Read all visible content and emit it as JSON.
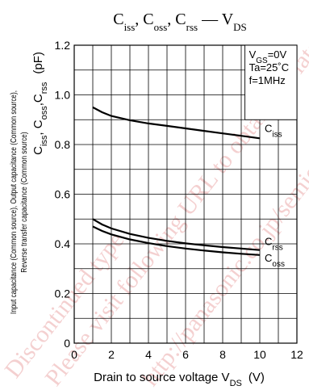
{
  "chart_data": {
    "type": "line",
    "title": {
      "parts": [
        {
          "text": "C",
          "sub": "iss"
        },
        {
          "text": ", C",
          "sub": "oss"
        },
        {
          "text": ", C",
          "sub": "rss"
        },
        {
          "text": " — V",
          "sub": "DS"
        }
      ]
    },
    "xlabel": {
      "main": "Drain to source voltage  V",
      "sub": "DS",
      "unit": "(V)"
    },
    "ylabel": {
      "lines": [
        "Input capacitance (Common source), Output capacitance (Common source),",
        "Reverse transfer capacitance (Common source)"
      ],
      "symbol_parts": [
        {
          "text": "C",
          "sub": "iss"
        },
        {
          "text": ", C",
          "sub": "oss"
        },
        {
          "text": ",C",
          "sub": "rss"
        }
      ],
      "unit": "(pF)"
    },
    "xlim": [
      0,
      12
    ],
    "ylim": [
      0,
      1.2
    ],
    "xticks": [
      "0",
      "2",
      "4",
      "6",
      "8",
      "10",
      "12"
    ],
    "yticks": [
      "0",
      "0.2",
      "0.4",
      "0.6",
      "0.8",
      "1.0",
      "1.2"
    ],
    "grid": true,
    "conditions": [
      {
        "text": "V",
        "sub": "GS",
        "rest": "=0V"
      },
      {
        "text": "Ta=25˚C",
        "sub": "",
        "rest": ""
      },
      {
        "text": "f=1MHz",
        "sub": "",
        "rest": ""
      }
    ],
    "series": [
      {
        "name": "Ciss",
        "label": "C",
        "sub": "iss",
        "x": [
          1,
          1.5,
          2,
          3,
          4,
          5,
          6,
          7,
          8,
          9,
          10
        ],
        "y": [
          0.95,
          0.93,
          0.915,
          0.898,
          0.885,
          0.875,
          0.865,
          0.855,
          0.845,
          0.835,
          0.825
        ]
      },
      {
        "name": "Crss",
        "label": "C",
        "sub": "rss",
        "x": [
          1,
          1.5,
          2,
          3,
          4,
          5,
          6,
          7,
          8,
          9,
          10
        ],
        "y": [
          0.5,
          0.478,
          0.462,
          0.44,
          0.424,
          0.412,
          0.402,
          0.394,
          0.387,
          0.381,
          0.375
        ]
      },
      {
        "name": "Coss",
        "label": "C",
        "sub": "oss",
        "x": [
          1,
          1.5,
          2,
          3,
          4,
          5,
          6,
          7,
          8,
          9,
          10
        ],
        "y": [
          0.47,
          0.452,
          0.438,
          0.418,
          0.403,
          0.391,
          0.381,
          0.373,
          0.366,
          0.36,
          0.355
        ]
      }
    ]
  },
  "watermark": [
    "Discontinued type",
    "Please visit following URL to obtain the latest information.",
    "http://panasonic.co.jp/semicon/e-index.html"
  ]
}
